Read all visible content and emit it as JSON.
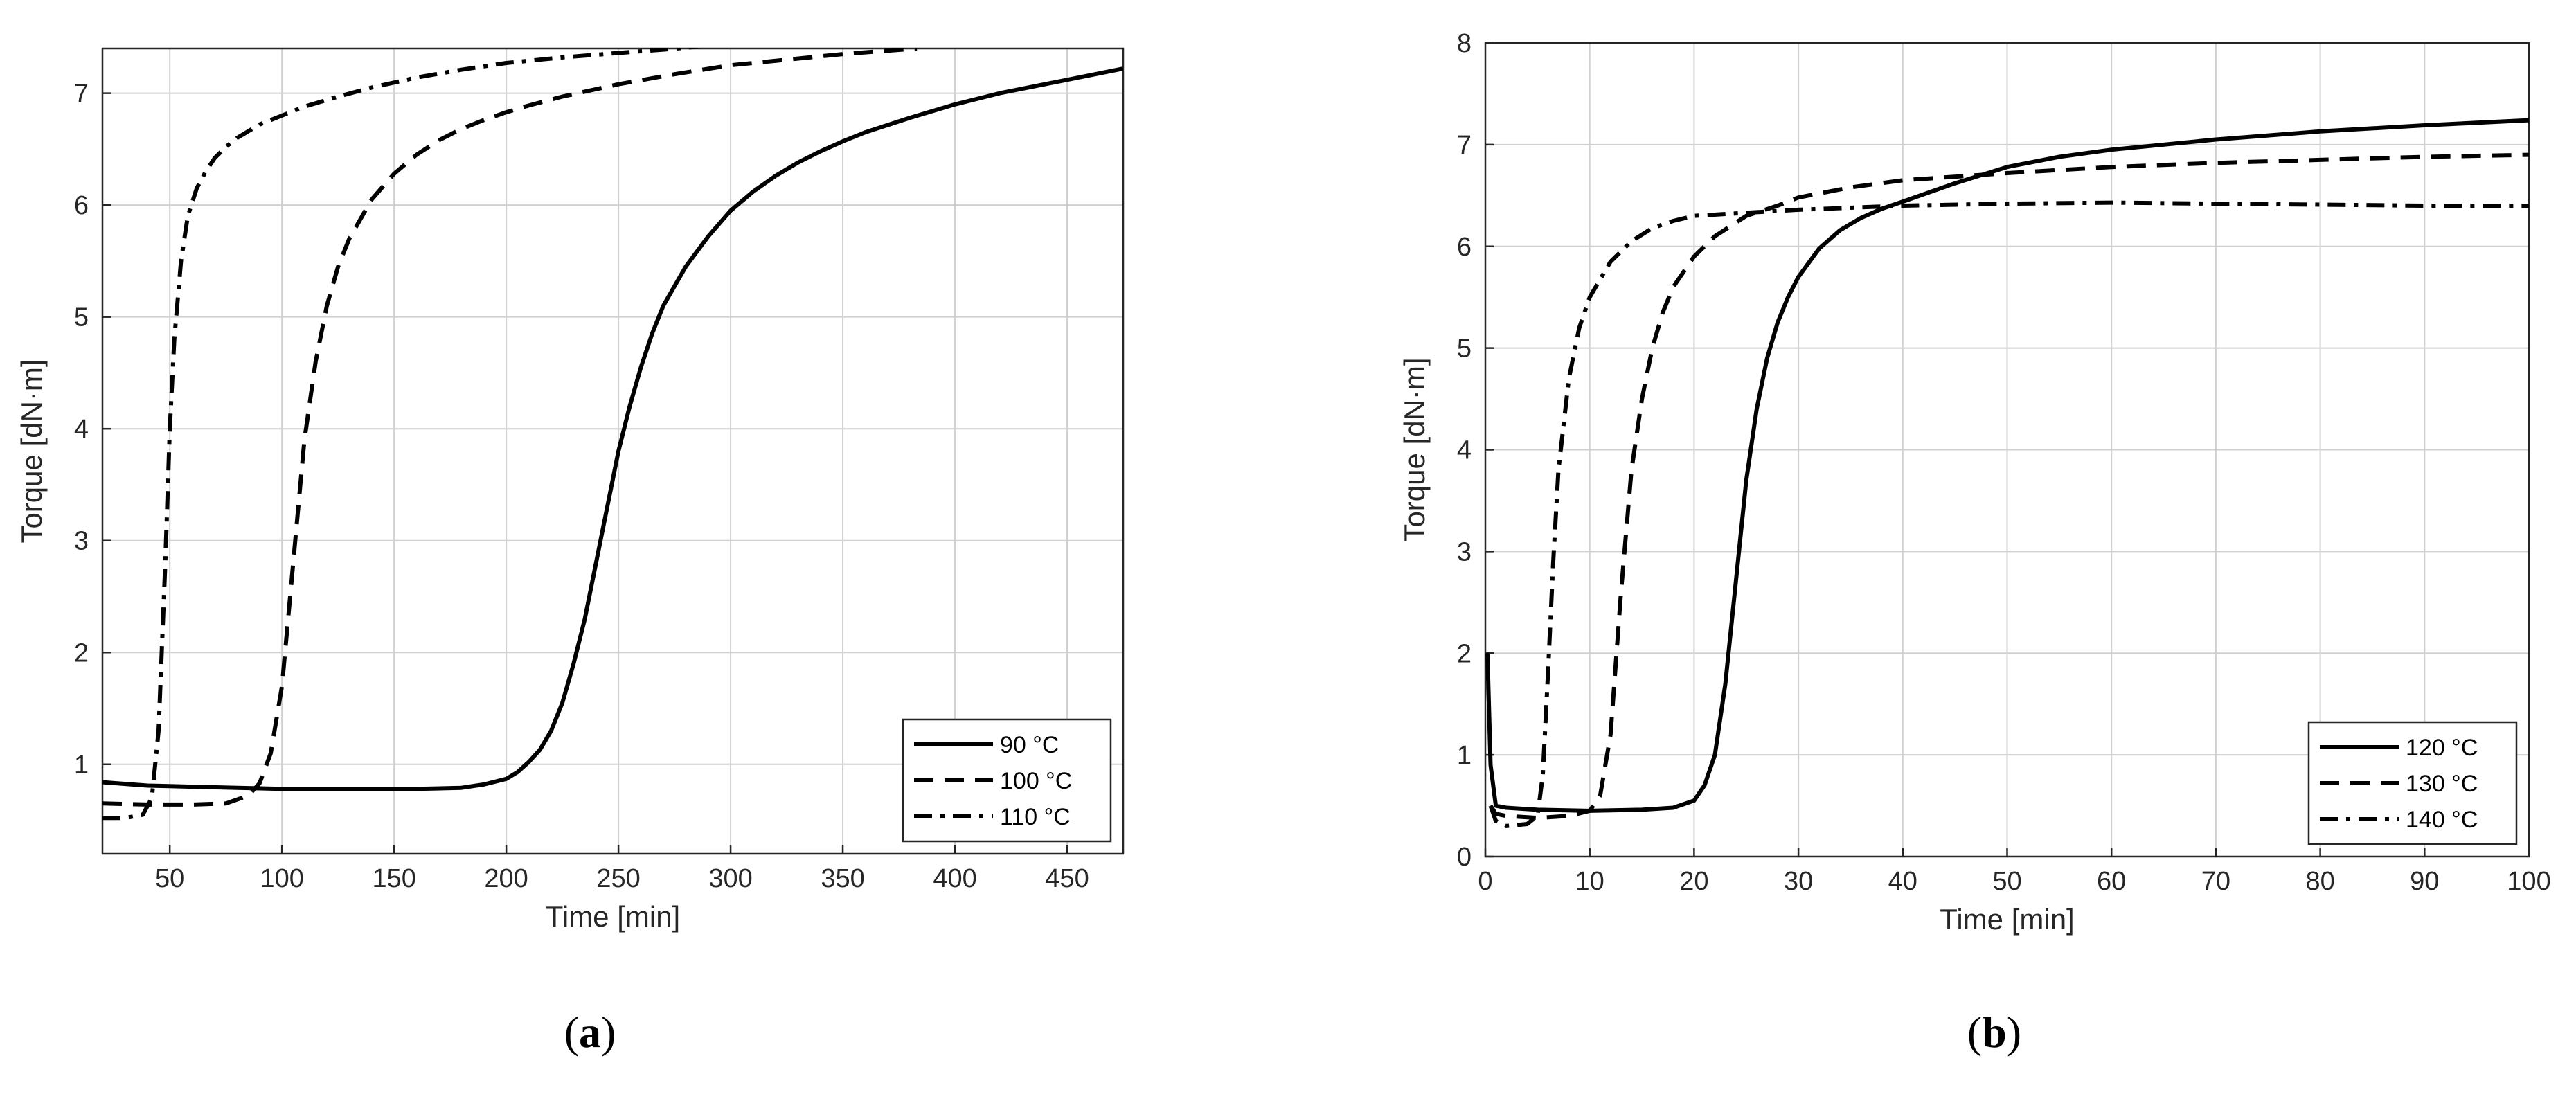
{
  "chart_data": [
    {
      "type": "line",
      "panel": "a",
      "caption_letter": "a",
      "xlabel": "Time [min]",
      "ylabel": "Torque [dN·m]",
      "xlim": [
        20,
        475
      ],
      "ylim": [
        0.2,
        7.4
      ],
      "xticks": [
        50,
        100,
        150,
        200,
        250,
        300,
        350,
        400,
        450
      ],
      "yticks": [
        1,
        2,
        3,
        4,
        5,
        6,
        7
      ],
      "grid": true,
      "legend_position": "bottom-right",
      "series": [
        {
          "name": "90 °C",
          "style": "solid",
          "x": [
            20,
            40,
            60,
            80,
            100,
            120,
            140,
            160,
            180,
            190,
            200,
            205,
            210,
            215,
            220,
            225,
            230,
            235,
            240,
            245,
            250,
            255,
            260,
            265,
            270,
            280,
            290,
            300,
            310,
            320,
            330,
            340,
            350,
            360,
            380,
            400,
            420,
            440,
            460,
            475
          ],
          "y": [
            0.84,
            0.81,
            0.8,
            0.79,
            0.78,
            0.78,
            0.78,
            0.78,
            0.79,
            0.82,
            0.87,
            0.93,
            1.02,
            1.13,
            1.3,
            1.55,
            1.9,
            2.3,
            2.8,
            3.3,
            3.8,
            4.2,
            4.55,
            4.85,
            5.1,
            5.45,
            5.72,
            5.95,
            6.12,
            6.26,
            6.38,
            6.48,
            6.57,
            6.65,
            6.78,
            6.9,
            7.0,
            7.08,
            7.16,
            7.22
          ]
        },
        {
          "name": "100 °C",
          "style": "dashed",
          "x": [
            20,
            40,
            60,
            75,
            85,
            90,
            95,
            100,
            105,
            110,
            115,
            120,
            125,
            130,
            140,
            150,
            160,
            170,
            180,
            190,
            200,
            210,
            225,
            250,
            275,
            300,
            325,
            350,
            383
          ],
          "y": [
            0.65,
            0.64,
            0.64,
            0.65,
            0.72,
            0.83,
            1.1,
            1.7,
            2.8,
            3.9,
            4.6,
            5.1,
            5.45,
            5.7,
            6.05,
            6.28,
            6.45,
            6.58,
            6.68,
            6.76,
            6.83,
            6.89,
            6.97,
            7.08,
            7.17,
            7.25,
            7.3,
            7.35,
            7.4
          ]
        },
        {
          "name": "110 °C",
          "style": "dashdot",
          "x": [
            20,
            30,
            38,
            42,
            45,
            48,
            50,
            52,
            55,
            58,
            62,
            66,
            70,
            75,
            80,
            90,
            100,
            110,
            125,
            140,
            160,
            180,
            200,
            225,
            250,
            270,
            288
          ],
          "y": [
            0.52,
            0.52,
            0.55,
            0.7,
            1.3,
            2.8,
            4.0,
            4.8,
            5.5,
            5.9,
            6.15,
            6.3,
            6.42,
            6.52,
            6.6,
            6.72,
            6.8,
            6.88,
            6.97,
            7.05,
            7.14,
            7.21,
            7.27,
            7.32,
            7.36,
            7.39,
            7.42
          ]
        }
      ]
    },
    {
      "type": "line",
      "panel": "b",
      "caption_letter": "b",
      "xlabel": "Time [min]",
      "ylabel": "Torque [dN·m]",
      "xlim": [
        0,
        100
      ],
      "ylim": [
        0,
        8
      ],
      "xticks": [
        0,
        10,
        20,
        30,
        40,
        50,
        60,
        70,
        80,
        90,
        100
      ],
      "yticks": [
        0,
        1,
        2,
        3,
        4,
        5,
        6,
        7,
        8
      ],
      "grid": true,
      "legend_position": "bottom-right",
      "series": [
        {
          "name": "120 °C",
          "style": "solid",
          "x": [
            0.2,
            0.5,
            1,
            2,
            5,
            10,
            15,
            18,
            20,
            21,
            22,
            23,
            24,
            25,
            26,
            27,
            28,
            29,
            30,
            32,
            34,
            36,
            38,
            40,
            45,
            50,
            55,
            60,
            70,
            80,
            90,
            100
          ],
          "y": [
            2.0,
            0.9,
            0.5,
            0.48,
            0.46,
            0.45,
            0.46,
            0.48,
            0.55,
            0.7,
            1.0,
            1.7,
            2.7,
            3.7,
            4.4,
            4.9,
            5.25,
            5.5,
            5.7,
            5.98,
            6.16,
            6.28,
            6.37,
            6.44,
            6.62,
            6.78,
            6.88,
            6.95,
            7.05,
            7.13,
            7.19,
            7.24
          ]
        },
        {
          "name": "130 °C",
          "style": "dashed",
          "x": [
            0.5,
            1,
            2,
            5,
            8,
            10,
            11,
            12,
            13,
            14,
            15,
            16,
            17,
            18,
            20,
            22,
            25,
            28,
            30,
            35,
            40,
            50,
            60,
            70,
            80,
            90,
            100
          ],
          "y": [
            0.5,
            0.42,
            0.4,
            0.38,
            0.4,
            0.45,
            0.6,
            1.2,
            2.6,
            3.8,
            4.5,
            5.0,
            5.35,
            5.6,
            5.9,
            6.1,
            6.3,
            6.4,
            6.48,
            6.58,
            6.65,
            6.72,
            6.78,
            6.82,
            6.85,
            6.88,
            6.9
          ]
        },
        {
          "name": "140 °C",
          "style": "dashdot",
          "x": [
            0.5,
            1,
            2,
            4,
            5,
            5.5,
            6,
            6.5,
            7,
            8,
            9,
            10,
            12,
            14,
            16,
            18,
            20,
            25,
            30,
            40,
            50,
            60,
            70,
            80,
            90,
            100
          ],
          "y": [
            0.5,
            0.35,
            0.3,
            0.32,
            0.4,
            0.8,
            1.8,
            2.9,
            3.8,
            4.7,
            5.2,
            5.5,
            5.85,
            6.05,
            6.18,
            6.25,
            6.3,
            6.33,
            6.36,
            6.4,
            6.42,
            6.43,
            6.42,
            6.41,
            6.4,
            6.4
          ]
        }
      ]
    }
  ]
}
